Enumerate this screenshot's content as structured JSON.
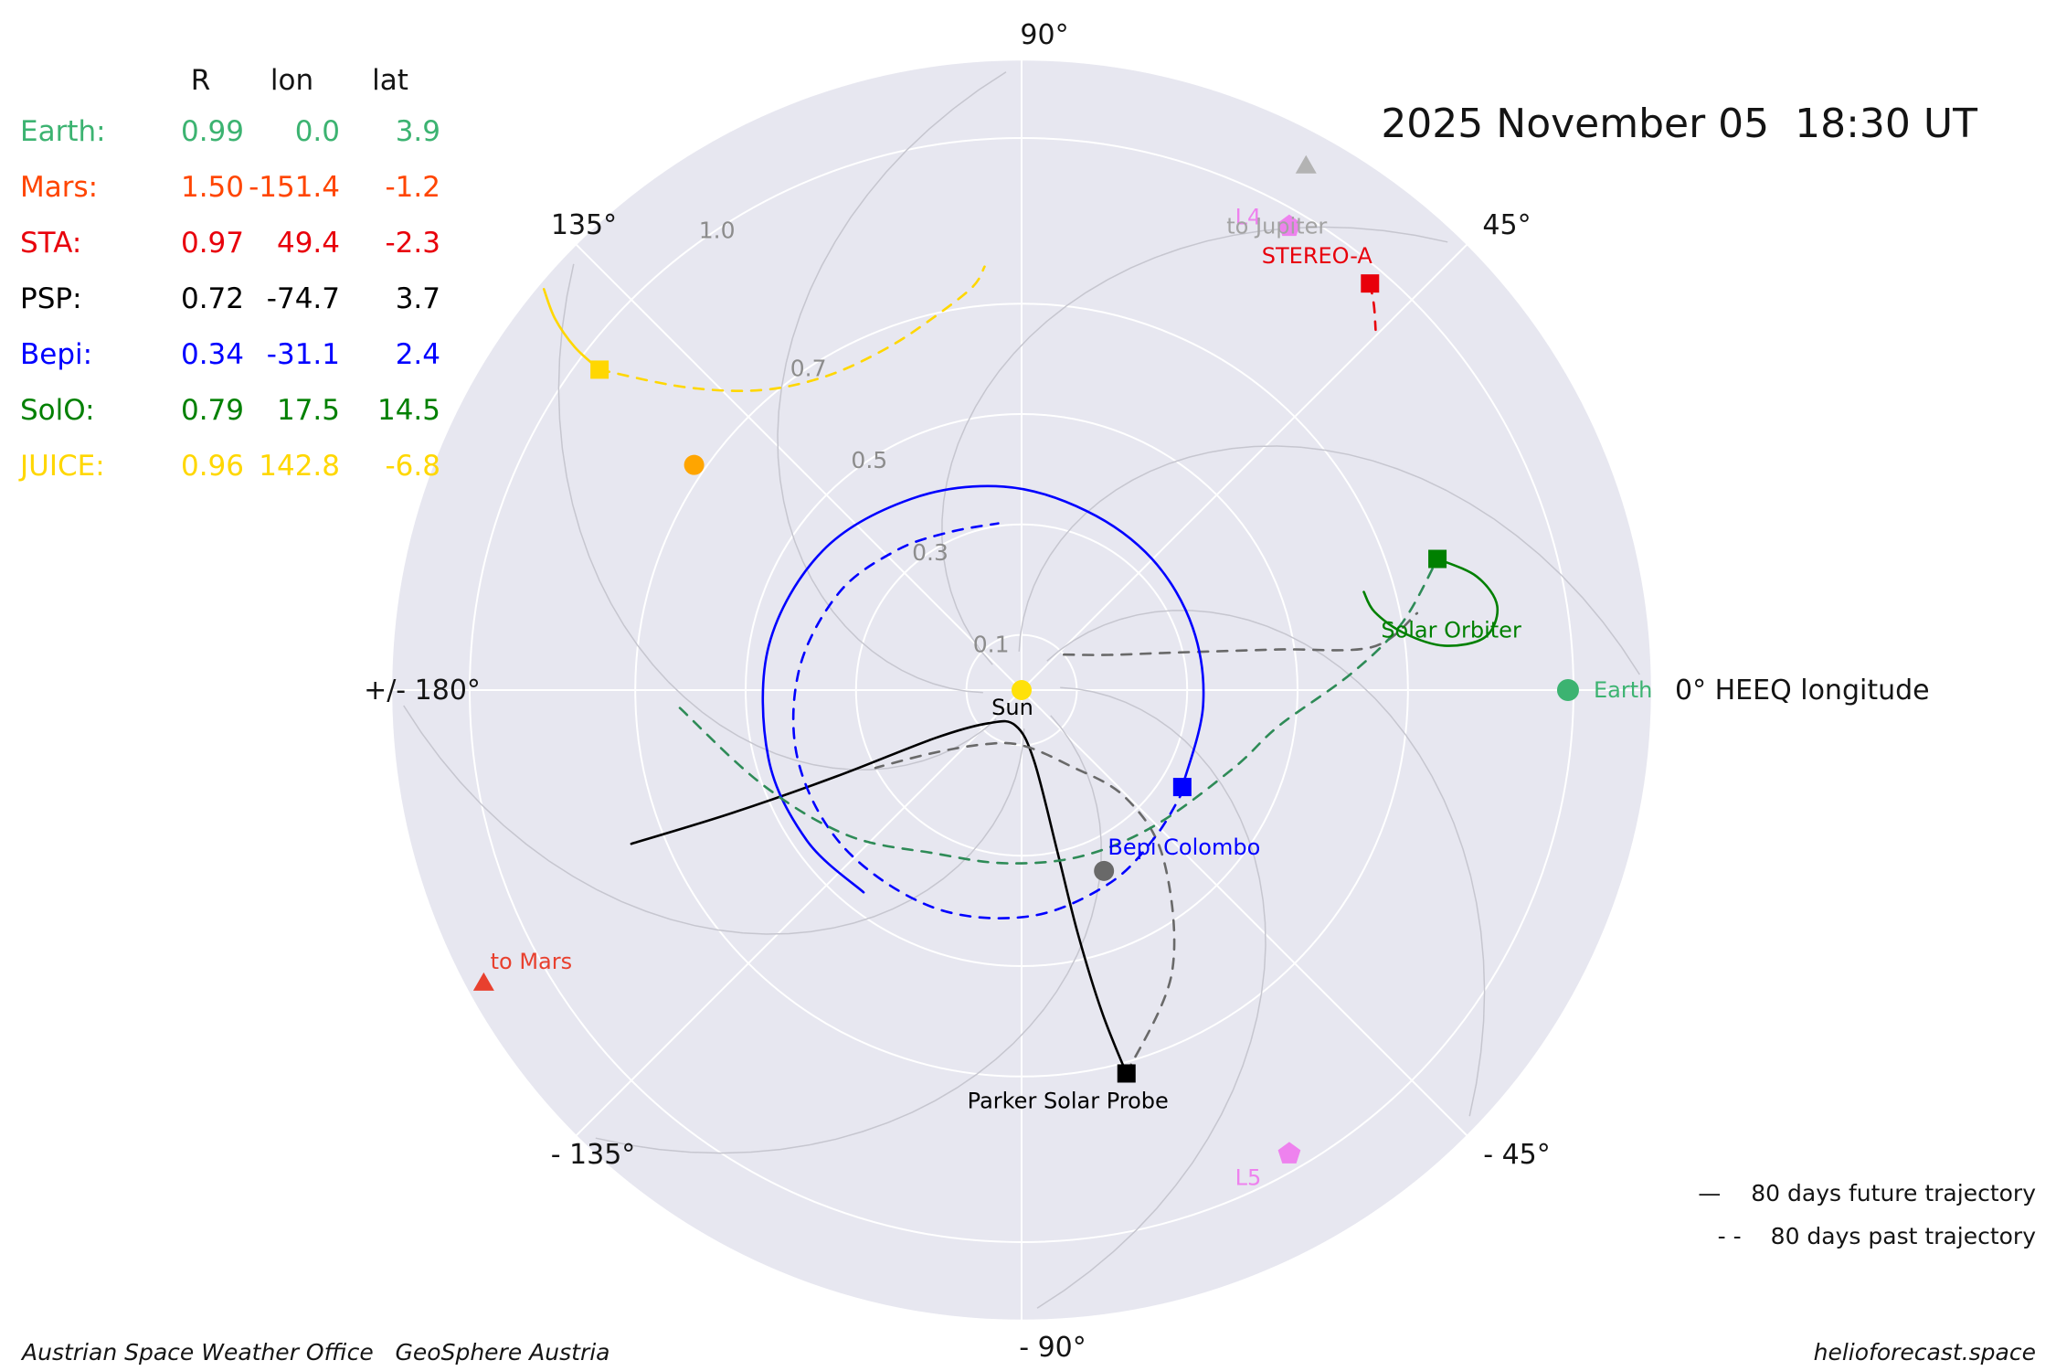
{
  "title": "2025 November 05  18:30 UT",
  "table": {
    "headers": [
      "R",
      "lon",
      "lat"
    ],
    "rows": [
      {
        "name": "Earth:",
        "R": "0.99",
        "lon": "0.0",
        "lat": "3.9",
        "color": "#3cb371"
      },
      {
        "name": "Mars:",
        "R": "1.50",
        "lon": "-151.4",
        "lat": "-1.2",
        "color": "#ff4500"
      },
      {
        "name": "STA:",
        "R": "0.97",
        "lon": "49.4",
        "lat": "-2.3",
        "color": "#e8000b"
      },
      {
        "name": "PSP:",
        "R": "0.72",
        "lon": "-74.7",
        "lat": "3.7",
        "color": "#000000"
      },
      {
        "name": "Bepi:",
        "R": "0.34",
        "lon": "-31.1",
        "lat": "2.4",
        "color": "#0000ff"
      },
      {
        "name": "SolO:",
        "R": "0.79",
        "lon": "17.5",
        "lat": "14.5",
        "color": "#008000"
      },
      {
        "name": "JUICE:",
        "R": "0.96",
        "lon": "142.8",
        "lat": "-6.8",
        "color": "#ffd700"
      }
    ]
  },
  "legend": [
    {
      "glyph": "—",
      "label": "80 days future trajectory"
    },
    {
      "glyph": "- -",
      "label": "80 days past trajectory"
    }
  ],
  "footer": {
    "left": "Austrian Space Weather Office   GeoSphere Austria",
    "right": "helioforecast.space"
  },
  "chart_data": {
    "type": "scatter",
    "projection": "polar",
    "r_unit": "AU",
    "angle_unit": "HEEQ longitude (deg)",
    "r_ticks": [
      "0.1",
      "0.3",
      "0.5",
      "0.7",
      "1.0"
    ],
    "r_tick_values": [
      0.1,
      0.3,
      0.5,
      0.7,
      1.0
    ],
    "r_max": 1.142,
    "r_label_angle_deg": 123.5,
    "background_color": "#e7e7f0",
    "grid_color": "#ffffff",
    "spiral_color": "#c6c6cf",
    "angle_labels": [
      "90°",
      "45°",
      "0° HEEQ longitude",
      "- 45°",
      "- 90°",
      "- 135°",
      "+/- 180°",
      "135°"
    ],
    "angle_label_degrees": [
      90,
      45,
      0,
      -45,
      -90,
      -135,
      180,
      135
    ],
    "objects": [
      {
        "id": "sun",
        "label": "Sun",
        "marker": "circle",
        "color": "#ffe10a",
        "label_color": "#000000",
        "lon": 0,
        "R": 0,
        "size": 11
      },
      {
        "id": "mercury",
        "marker": "circle",
        "color": "#696969",
        "lon": -65.5,
        "R": 0.36,
        "size": 11
      },
      {
        "id": "venus",
        "marker": "circle",
        "color": "#ffa500",
        "lon": 145.5,
        "R": 0.72,
        "size": 11
      },
      {
        "id": "earth",
        "label": "Earth",
        "marker": "circle",
        "color": "#3cb371",
        "lon": 0.0,
        "R": 0.99,
        "size": 12
      },
      {
        "id": "stereo-a",
        "label": "STEREO-A",
        "marker": "square",
        "color": "#e8000b",
        "lon": 49.4,
        "R": 0.97
      },
      {
        "id": "psp",
        "label": "Parker Solar Probe",
        "marker": "square",
        "color": "#000000",
        "lon": -74.7,
        "R": 0.72
      },
      {
        "id": "bepi",
        "label": "Bepi Colombo",
        "marker": "square",
        "color": "#0000ff",
        "lon": -31.1,
        "R": 0.34
      },
      {
        "id": "solo",
        "label": "Solar Orbiter",
        "marker": "square",
        "color": "#008000",
        "lon": 17.5,
        "R": 0.79
      },
      {
        "id": "juice",
        "marker": "square",
        "color": "#ffd700",
        "lon": 142.8,
        "R": 0.96
      },
      {
        "id": "l4",
        "label": "L4",
        "marker": "pentagon",
        "color": "#ee82ee",
        "lon": 60,
        "R": 0.97
      },
      {
        "id": "l5",
        "label": "L5",
        "marker": "pentagon",
        "color": "#ee82ee",
        "lon": -60,
        "R": 0.97
      },
      {
        "id": "to-mars",
        "label": "to Mars",
        "marker": "triangle",
        "color": "#e8402e",
        "lon": -151.4,
        "R": 1.11
      },
      {
        "id": "to-jupiter",
        "label": "to Jupiter",
        "marker": "triangle",
        "color": "#b3b3b3",
        "label_color": "#a3a3a3",
        "lon": 61.5,
        "R": 1.08
      }
    ],
    "trajectories": [
      {
        "id": "psp-future",
        "color": "#000000",
        "dashed": false,
        "points": [
          [
            -158.5,
            0.76
          ],
          [
            -157,
            0.57
          ],
          [
            -155,
            0.37
          ],
          [
            -151,
            0.18
          ],
          [
            -135,
            0.085
          ],
          [
            -100,
            0.065
          ],
          [
            -80,
            0.13
          ],
          [
            -77.5,
            0.3
          ],
          [
            -77,
            0.45
          ],
          [
            -76,
            0.6
          ],
          [
            -74.7,
            0.72
          ]
        ]
      },
      {
        "id": "psp-past-inner",
        "color": "#696969",
        "dashed": true,
        "points": [
          [
            -74.7,
            0.72
          ],
          [
            -62,
            0.58
          ],
          [
            -50,
            0.4
          ],
          [
            -46,
            0.27
          ],
          [
            -58,
            0.16
          ],
          [
            -90,
            0.1
          ],
          [
            -125,
            0.12
          ],
          [
            -145,
            0.2
          ],
          [
            -152,
            0.3
          ]
        ]
      },
      {
        "id": "psp-past-outer",
        "color": "#696969",
        "dashed": true,
        "points": [
          [
            40,
            0.1
          ],
          [
            22,
            0.17
          ],
          [
            14,
            0.28
          ],
          [
            9,
            0.47
          ],
          [
            7,
            0.64
          ],
          [
            11,
            0.73
          ]
        ]
      },
      {
        "id": "bepi-future",
        "color": "#0000ff",
        "dashed": false,
        "points": [
          [
            -31.1,
            0.34
          ],
          [
            -5,
            0.33
          ],
          [
            20,
            0.33
          ],
          [
            45,
            0.335
          ],
          [
            70,
            0.345
          ],
          [
            95,
            0.37
          ],
          [
            120,
            0.4
          ],
          [
            145,
            0.44
          ],
          [
            170,
            0.465
          ],
          [
            195,
            0.475
          ],
          [
            215,
            0.475
          ],
          [
            232,
            0.465
          ]
        ]
      },
      {
        "id": "bepi-past",
        "color": "#0000ff",
        "dashed": true,
        "points": [
          [
            -31.1,
            0.345
          ],
          [
            -48,
            0.36
          ],
          [
            -66,
            0.385
          ],
          [
            -88,
            0.41
          ],
          [
            -112,
            0.425
          ],
          [
            -138,
            0.43
          ],
          [
            -162,
            0.425
          ],
          [
            -185,
            0.405
          ],
          [
            -208,
            0.375
          ],
          [
            -228,
            0.34
          ],
          [
            -245,
            0.315
          ],
          [
            -262,
            0.305
          ]
        ]
      },
      {
        "id": "solo-future",
        "color": "#008000",
        "dashed": false,
        "points": [
          [
            17.5,
            0.79
          ],
          [
            14,
            0.85
          ],
          [
            10,
            0.875
          ],
          [
            6.5,
            0.845
          ],
          [
            6,
            0.77
          ],
          [
            8.5,
            0.7
          ],
          [
            12.5,
            0.655
          ],
          [
            16,
            0.645
          ]
        ]
      },
      {
        "id": "solo-past",
        "color": "#2e8b57",
        "dashed": true,
        "points": [
          [
            -177,
            0.62
          ],
          [
            -160,
            0.5
          ],
          [
            -140,
            0.41
          ],
          [
            -118,
            0.335
          ],
          [
            -95,
            0.315
          ],
          [
            -70,
            0.32
          ],
          [
            -45,
            0.345
          ],
          [
            -20,
            0.41
          ],
          [
            -8,
            0.47
          ],
          [
            3,
            0.6
          ],
          [
            10,
            0.7
          ],
          [
            17.5,
            0.79
          ]
        ]
      },
      {
        "id": "juice-future",
        "color": "#ffd700",
        "dashed": false,
        "points": [
          [
            142.8,
            0.96
          ],
          [
            142.5,
            1.02
          ],
          [
            141.5,
            1.08
          ],
          [
            140,
            1.13
          ]
        ]
      },
      {
        "id": "juice-past",
        "color": "#ffd700",
        "dashed": true,
        "points": [
          [
            142.8,
            0.96
          ],
          [
            138,
            0.82
          ],
          [
            131,
            0.72
          ],
          [
            122,
            0.67
          ],
          [
            112,
            0.665
          ],
          [
            104,
            0.69
          ],
          [
            97,
            0.735
          ],
          [
            95,
            0.77
          ]
        ]
      },
      {
        "id": "sta-past",
        "color": "#e8000b",
        "dashed": true,
        "points": [
          [
            49.4,
            0.97
          ],
          [
            47.5,
            0.945
          ],
          [
            45.5,
            0.915
          ]
        ]
      }
    ]
  }
}
